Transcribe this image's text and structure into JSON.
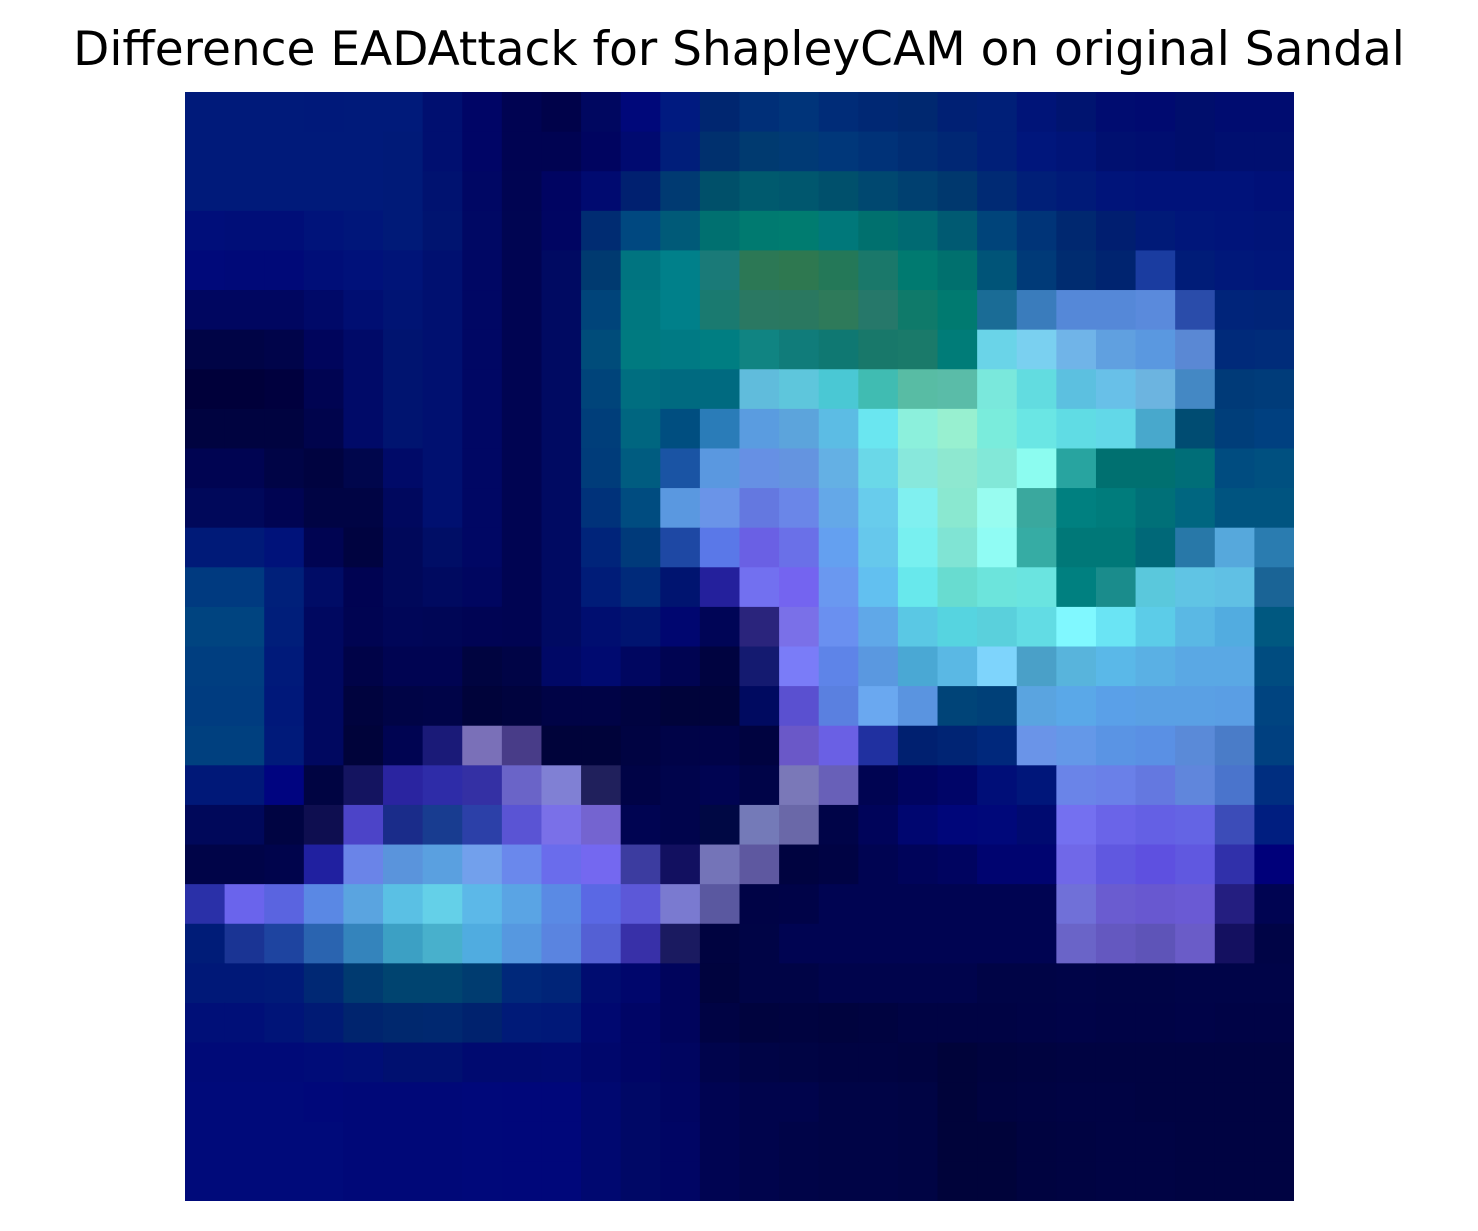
{
  "chart_data": {
    "type": "heatmap",
    "title": "Difference EADAttack for ShapleyCAM on original Sandal",
    "xlabel": "",
    "ylabel": "",
    "grid": false,
    "axes_visible": false,
    "legend": "none",
    "rows": 28,
    "cols": 28,
    "cells": [
      [
        "#001a7a",
        "#001a7a",
        "#001a7a",
        "#00197a",
        "#001a7a",
        "#001a7a",
        "#000f70",
        "#000566",
        "#000352",
        "#00024a",
        "#000760",
        "#00087a",
        "#001a80",
        "#002670",
        "#002f78",
        "#00347a",
        "#002c78",
        "#002874",
        "#002870",
        "#002074",
        "#001f78",
        "#001478",
        "#001470",
        "#000c70",
        "#000a70",
        "#000e6c",
        "#000c70",
        "#000c70"
      ],
      [
        "#001a7a",
        "#001a7a",
        "#001a7a",
        "#001a7a",
        "#001a7a",
        "#001a78",
        "#000f70",
        "#000566",
        "#000352",
        "#000352",
        "#000460",
        "#000a70",
        "#001e7a",
        "#00306e",
        "#003a70",
        "#003a75",
        "#00377a",
        "#003278",
        "#002d74",
        "#002774",
        "#001f78",
        "#00167c",
        "#001478",
        "#001070",
        "#000e70",
        "#000e6c",
        "#000f70",
        "#000f70"
      ],
      [
        "#001a7a",
        "#001a7a",
        "#001a7a",
        "#001a7a",
        "#001a7a",
        "#001a78",
        "#001270",
        "#000764",
        "#000452",
        "#000462",
        "#000a70",
        "#002070",
        "#003a72",
        "#00506a",
        "#005a6e",
        "#00576e",
        "#00506c",
        "#004870",
        "#004070",
        "#00386e",
        "#002a74",
        "#001f78",
        "#001a78",
        "#00147a",
        "#00127a",
        "#00127a",
        "#00127a",
        "#001078"
      ],
      [
        "#000e7a",
        "#000e78",
        "#000e78",
        "#00137a",
        "#00167a",
        "#001a78",
        "#001470",
        "#000864",
        "#000552",
        "#000562",
        "#002c72",
        "#004880",
        "#005a78",
        "#007070",
        "#007a70",
        "#007c70",
        "#00787a",
        "#00706e",
        "#006a72",
        "#005a72",
        "#00447a",
        "#003478",
        "#002870",
        "#001e70",
        "#001a78",
        "#00167a",
        "#00147a",
        "#001478"
      ],
      [
        "#00097a",
        "#000978",
        "#000978",
        "#000e78",
        "#00117a",
        "#001478",
        "#001070",
        "#000764",
        "#000452",
        "#000a62",
        "#003a70",
        "#007480",
        "#00808a",
        "#1a7a78",
        "#2c7855",
        "#2e7850",
        "#247858",
        "#1a786a",
        "#007a70",
        "#00706e",
        "#005478",
        "#003a78",
        "#002c70",
        "#002470",
        "#1a3ca0",
        "#001c78",
        "#00187a",
        "#00167a"
      ],
      [
        "#000660",
        "#000660",
        "#000660",
        "#000968",
        "#000e72",
        "#001474",
        "#001070",
        "#000764",
        "#000452",
        "#000a62",
        "#00447a",
        "#007880",
        "#00808a",
        "#1a7a70",
        "#2a7862",
        "#2a7860",
        "#2e7a5a",
        "#26786a",
        "#0f7a6a",
        "#007a70",
        "#1a6c96",
        "#3a7cbc",
        "#5588d8",
        "#5588d8",
        "#5a8adc",
        "#2a4caa",
        "#00247a",
        "#002478"
      ],
      [
        "#000446",
        "#000446",
        "#00044a",
        "#00055c",
        "#000a68",
        "#001470",
        "#001070",
        "#000764",
        "#000452",
        "#000a62",
        "#004c7a",
        "#007a80",
        "#007a84",
        "#007e82",
        "#108482",
        "#107c7a",
        "#0f7872",
        "#18786a",
        "#1a7a6a",
        "#007c78",
        "#6ad4e8",
        "#7ad0f0",
        "#70b4e8",
        "#60a0e0",
        "#5a98e0",
        "#5a88d4",
        "#002a7a",
        "#002c7a"
      ],
      [
        "#00003a",
        "#00003a",
        "#00003e",
        "#000452",
        "#000a68",
        "#001470",
        "#001070",
        "#000764",
        "#000452",
        "#000a62",
        "#00447a",
        "#006e80",
        "#006a80",
        "#006a80",
        "#60bcdc",
        "#5ec6dc",
        "#4ac8d4",
        "#40bcb2",
        "#58bca4",
        "#5abca8",
        "#7ae8dc",
        "#62dce0",
        "#5cc0e0",
        "#68c0e8",
        "#6cb4e0",
        "#4488c4",
        "#003a78",
        "#003c7a"
      ],
      [
        "#000340",
        "#000340",
        "#000340",
        "#00044c",
        "#000a68",
        "#001470",
        "#001070",
        "#000764",
        "#000452",
        "#000a62",
        "#003e7a",
        "#006680",
        "#004e80",
        "#2a7cb8",
        "#5a9ce0",
        "#5ca4dc",
        "#5cbce4",
        "#6ae6f0",
        "#8cf0dc",
        "#98f0d0",
        "#7aecdc",
        "#6ae6e4",
        "#60dce4",
        "#62d8e8",
        "#48a8cc",
        "#004c72",
        "#003e7a",
        "#004080"
      ],
      [
        "#000452",
        "#000452",
        "#000446",
        "#000340",
        "#00064c",
        "#000a68",
        "#001070",
        "#000764",
        "#000452",
        "#000a62",
        "#003c7a",
        "#005c80",
        "#1a54a4",
        "#5a98e0",
        "#6690e4",
        "#6494e0",
        "#64b0e4",
        "#6ad8e8",
        "#88e8dc",
        "#8ee8d0",
        "#82e8d8",
        "#8cfcf0",
        "#28a4a0",
        "#007070",
        "#007070",
        "#006e78",
        "#004c80",
        "#005080"
      ],
      [
        "#00085a",
        "#00085a",
        "#000452",
        "#000444",
        "#000444",
        "#00085e",
        "#001070",
        "#000764",
        "#000452",
        "#000a62",
        "#00327a",
        "#004c80",
        "#5a98e0",
        "#6a94e8",
        "#6478e0",
        "#6a86e8",
        "#64a8e8",
        "#68ccec",
        "#80f0f0",
        "#8ae8d0",
        "#98fcf0",
        "#3aa89e",
        "#008080",
        "#007c7c",
        "#007078",
        "#006680",
        "#005480",
        "#005480"
      ],
      [
        "#001a78",
        "#001a78",
        "#00127a",
        "#000452",
        "#000340",
        "#00085a",
        "#000e66",
        "#000764",
        "#000452",
        "#000a62",
        "#00247a",
        "#003a7a",
        "#1e48a4",
        "#5a78e8",
        "#6a60e4",
        "#6a70e8",
        "#64a0f0",
        "#66c8ec",
        "#78f0f0",
        "#80e4d4",
        "#90fcf4",
        "#36aca4",
        "#007878",
        "#007878",
        "#006878",
        "#2878a8",
        "#56a8dc",
        "#2a7cb0"
      ],
      [
        "#003a80",
        "#003a80",
        "#00207a",
        "#000c66",
        "#000352",
        "#00085a",
        "#000a60",
        "#000660",
        "#000452",
        "#000a62",
        "#001c78",
        "#002a7a",
        "#001470",
        "#24209c",
        "#7270f0",
        "#7464f0",
        "#6a98f0",
        "#62c0f0",
        "#68e8ec",
        "#68dcd0",
        "#6ce4dc",
        "#6ae4e0",
        "#008080",
        "#1a8c8c",
        "#5ac8dc",
        "#60c4e4",
        "#60c0e4",
        "#1a6496"
      ],
      [
        "#004480",
        "#004480",
        "#001e7a",
        "#000860",
        "#000452",
        "#000658",
        "#000656",
        "#000454",
        "#000452",
        "#000a62",
        "#000e70",
        "#001470",
        "#000670",
        "#000556",
        "#2a247c",
        "#7a70e8",
        "#6a90f0",
        "#60a8e8",
        "#5ac8e4",
        "#56d4e0",
        "#5ad0dc",
        "#62dce4",
        "#80f8ff",
        "#6ae4f4",
        "#5ccce8",
        "#5ab8e4",
        "#52ace0",
        "#005880"
      ],
      [
        "#003e80",
        "#003e80",
        "#001a7a",
        "#000860",
        "#000348",
        "#000452",
        "#000452",
        "#000440",
        "#000446",
        "#000866",
        "#000a70",
        "#000660",
        "#000452",
        "#000340",
        "#141a70",
        "#7a7cf8",
        "#5e84e8",
        "#5a98e0",
        "#4aa8d4",
        "#5ab8e4",
        "#7ed4fc",
        "#4aa0c8",
        "#58b4dc",
        "#5ab8e8",
        "#5ab0e4",
        "#5aa8e4",
        "#5aa8e4",
        "#004c80"
      ],
      [
        "#003c80",
        "#003c80",
        "#00187a",
        "#000860",
        "#00033e",
        "#000446",
        "#000448",
        "#00033a",
        "#00033e",
        "#000346",
        "#000346",
        "#000340",
        "#00033a",
        "#00033a",
        "#000a60",
        "#5a50d0",
        "#5a80e0",
        "#6aa8f0",
        "#5a94e0",
        "#004478",
        "#004078",
        "#5aa4e0",
        "#5aa8e8",
        "#5aa0e8",
        "#5aa0e4",
        "#5aa0e4",
        "#5a9ee4",
        "#004480"
      ],
      [
        "#00407f",
        "#00407f",
        "#001a7a",
        "#000860",
        "#00033a",
        "#000452",
        "#1a1a78",
        "#7a70b8",
        "#483c88",
        "#00033a",
        "#00033a",
        "#000342",
        "#000348",
        "#000348",
        "#000340",
        "#6a58c8",
        "#6a60e4",
        "#2030a0",
        "#002070",
        "#002474",
        "#00287c",
        "#6a94e8",
        "#6498e8",
        "#5a94e4",
        "#5a90e4",
        "#5a8ad8",
        "#4a7cc8",
        "#004080"
      ],
      [
        "#001878",
        "#001878",
        "#000480",
        "#000442",
        "#141460",
        "#2a24a0",
        "#2e2ca8",
        "#3430a4",
        "#6a64c8",
        "#8080d4",
        "#20205c",
        "#000346",
        "#00044c",
        "#000452",
        "#000448",
        "#7a78b8",
        "#6860b8",
        "#000452",
        "#000460",
        "#000568",
        "#000e78",
        "#00167a",
        "#6a84e8",
        "#6a80e8",
        "#6478e0",
        "#6086dc",
        "#4a74cc",
        "#002e80"
      ],
      [
        "#00085a",
        "#00085a",
        "#000442",
        "#0e0e50",
        "#4c44c8",
        "#1a2c8a",
        "#183c90",
        "#2c40a8",
        "#5a54d4",
        "#7a70e8",
        "#7464d0",
        "#000452",
        "#00044c",
        "#000844",
        "#747ab8",
        "#6a68a8",
        "#000448",
        "#00045a",
        "#000670",
        "#00067a",
        "#00087a",
        "#000a70",
        "#7470f0",
        "#6a64e8",
        "#6460e4",
        "#6464e4",
        "#3c4cb8",
        "#001e80"
      ],
      [
        "#000448",
        "#000448",
        "#00044c",
        "#2020a0",
        "#6a84e8",
        "#5a94dc",
        "#5aa0e0",
        "#72a0ec",
        "#6a88ec",
        "#6a6cec",
        "#7468f0",
        "#3c3ca0",
        "#121060",
        "#7474b8",
        "#5e58a0",
        "#000340",
        "#000344",
        "#000452",
        "#00045a",
        "#000460",
        "#000470",
        "#000470",
        "#7068e8",
        "#6058e0",
        "#5e50e0",
        "#6058e0",
        "#3030aa",
        "#00007a"
      ],
      [
        "#2a30a8",
        "#6a64ec",
        "#5a64e0",
        "#5a88e4",
        "#5aa4e0",
        "#5ac0e4",
        "#64d0e8",
        "#5cb8e8",
        "#5aa4e4",
        "#5a8ae4",
        "#5a68e4",
        "#5c58d8",
        "#7a7ad0",
        "#5a58a0",
        "#000346",
        "#000348",
        "#000452",
        "#000452",
        "#000452",
        "#000452",
        "#000452",
        "#000452",
        "#7070d8",
        "#6a5cd0",
        "#6858d0",
        "#6a5ad4",
        "#241e80",
        "#000452"
      ],
      [
        "#001c78",
        "#1a3494",
        "#1e44a0",
        "#2a64b0",
        "#3484bc",
        "#3ca0c4",
        "#48b0cc",
        "#50ace0",
        "#5698e0",
        "#5a84e0",
        "#5460d4",
        "#3830a8",
        "#1a1a60",
        "#000340",
        "#000446",
        "#000452",
        "#000452",
        "#000452",
        "#000452",
        "#000452",
        "#000452",
        "#000452",
        "#6a64c8",
        "#6458c0",
        "#5e54b8",
        "#6a5cc8",
        "#141060",
        "#000446"
      ],
      [
        "#001878",
        "#001878",
        "#001a78",
        "#002874",
        "#003a70",
        "#004470",
        "#004470",
        "#003c70",
        "#00287a",
        "#002478",
        "#000c70",
        "#00066c",
        "#00045c",
        "#00033e",
        "#000446",
        "#000446",
        "#00044c",
        "#00044c",
        "#00044c",
        "#00044c",
        "#000446",
        "#000446",
        "#000448",
        "#000446",
        "#000446",
        "#000448",
        "#000448",
        "#000448"
      ],
      [
        "#000f78",
        "#000f78",
        "#001478",
        "#001a74",
        "#00246e",
        "#00286e",
        "#002870",
        "#00226e",
        "#001a78",
        "#001878",
        "#000870",
        "#000566",
        "#00045c",
        "#000344",
        "#00033e",
        "#000340",
        "#00033e",
        "#000340",
        "#000344",
        "#000344",
        "#000344",
        "#000346",
        "#000348",
        "#000346",
        "#000346",
        "#000348",
        "#000346",
        "#000346"
      ],
      [
        "#000a78",
        "#000a78",
        "#000a78",
        "#000c78",
        "#000e76",
        "#001070",
        "#001070",
        "#000a70",
        "#000a70",
        "#000a72",
        "#00076c",
        "#000566",
        "#000560",
        "#00044c",
        "#000446",
        "#000444",
        "#000342",
        "#000342",
        "#000340",
        "#00033a",
        "#00033e",
        "#000340",
        "#000342",
        "#000342",
        "#000342",
        "#000342",
        "#000342",
        "#000342"
      ],
      [
        "#000a7a",
        "#000a7a",
        "#000a7a",
        "#00087a",
        "#000878",
        "#000878",
        "#000878",
        "#00087a",
        "#00077a",
        "#00077a",
        "#000870",
        "#000866",
        "#000562",
        "#000452",
        "#00044c",
        "#00044c",
        "#000446",
        "#000446",
        "#000444",
        "#00033a",
        "#000340",
        "#000342",
        "#000344",
        "#000344",
        "#000342",
        "#000342",
        "#000342",
        "#000342"
      ],
      [
        "#000a7a",
        "#000a7a",
        "#000a7a",
        "#000a7a",
        "#000878",
        "#000878",
        "#000878",
        "#00087a",
        "#00077a",
        "#00077a",
        "#000870",
        "#000866",
        "#000564",
        "#000452",
        "#00044c",
        "#000448",
        "#000446",
        "#000446",
        "#000444",
        "#00033a",
        "#00033a",
        "#000340",
        "#000342",
        "#000344",
        "#000344",
        "#000342",
        "#000342",
        "#000342"
      ],
      [
        "#000a7a",
        "#000a7a",
        "#000a7a",
        "#000a7a",
        "#000878",
        "#000878",
        "#000878",
        "#00087a",
        "#00077a",
        "#00077a",
        "#000870",
        "#000866",
        "#000564",
        "#000452",
        "#00044c",
        "#000448",
        "#000446",
        "#000446",
        "#000444",
        "#00033a",
        "#00033a",
        "#000340",
        "#000342",
        "#000344",
        "#000344",
        "#000342",
        "#000342",
        "#000342"
      ]
    ]
  }
}
